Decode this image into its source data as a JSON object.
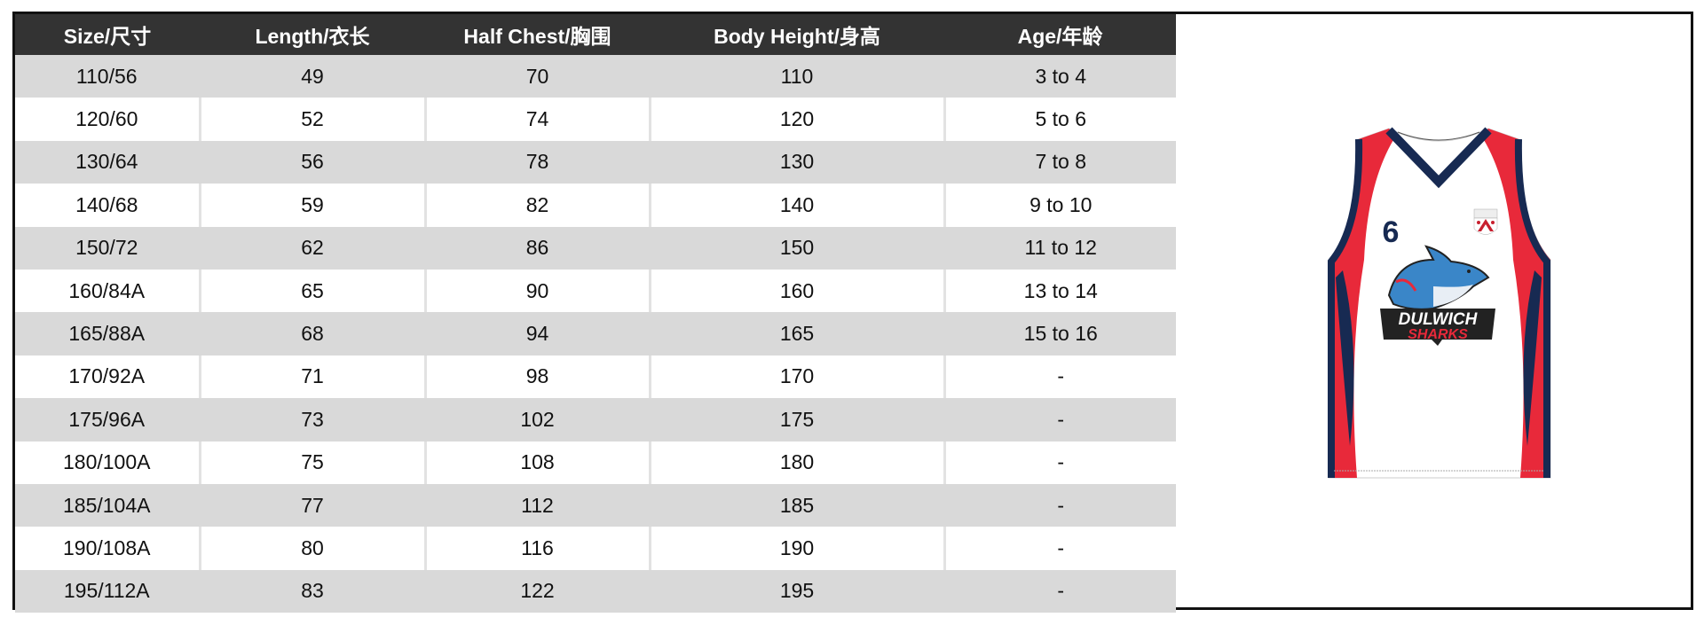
{
  "table": {
    "headers": [
      "Size/尺寸",
      "Length/衣长",
      "Half Chest/胸围",
      "Body Height/身高",
      "Age/年龄"
    ],
    "rows": [
      [
        "110/56",
        "49",
        "70",
        "110",
        "3 to 4"
      ],
      [
        "120/60",
        "52",
        "74",
        "120",
        "5 to 6"
      ],
      [
        "130/64",
        "56",
        "78",
        "130",
        "7 to 8"
      ],
      [
        "140/68",
        "59",
        "82",
        "140",
        "9 to 10"
      ],
      [
        "150/72",
        "62",
        "86",
        "150",
        "11 to 12"
      ],
      [
        "160/84A",
        "65",
        "90",
        "160",
        "13 to 14"
      ],
      [
        "165/88A",
        "68",
        "94",
        "165",
        "15 to 16"
      ],
      [
        "170/92A",
        "71",
        "98",
        "170",
        "-"
      ],
      [
        "175/96A",
        "73",
        "102",
        "175",
        "-"
      ],
      [
        "180/100A",
        "75",
        "108",
        "180",
        "-"
      ],
      [
        "185/104A",
        "77",
        "112",
        "185",
        "-"
      ],
      [
        "190/108A",
        "80",
        "116",
        "190",
        "-"
      ],
      [
        "195/112A",
        "83",
        "122",
        "195",
        "-"
      ]
    ]
  },
  "jersey": {
    "number": "6",
    "logo_line1": "DULWICH",
    "logo_line2": "SHARKS",
    "colors": {
      "red": "#e8293a",
      "navy": "#172a52",
      "shark": "#3a86c8"
    }
  }
}
